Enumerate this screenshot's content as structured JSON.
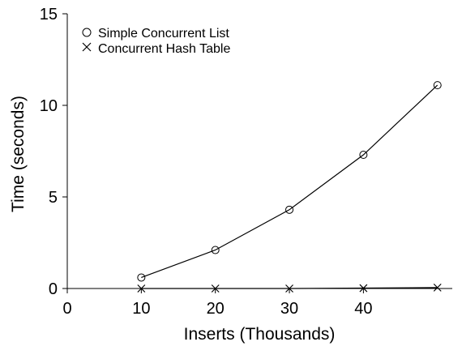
{
  "chart_data": {
    "type": "line",
    "x": [
      10,
      20,
      30,
      40,
      50
    ],
    "series": [
      {
        "name": "Simple Concurrent List",
        "marker": "circle",
        "values": [
          0.6,
          2.1,
          4.3,
          7.3,
          11.1
        ]
      },
      {
        "name": "Concurrent Hash Table",
        "marker": "x",
        "values": [
          0.0,
          0.0,
          0.0,
          0.02,
          0.05
        ]
      }
    ],
    "xlabel": "Inserts (Thousands)",
    "ylabel": "Time (seconds)",
    "xlim": [
      0,
      52
    ],
    "ylim": [
      0,
      15
    ],
    "xticks": [
      0,
      10,
      20,
      30,
      40
    ],
    "xtick_labels": [
      "0",
      "10",
      "20",
      "30",
      "40"
    ],
    "yticks": [
      0,
      5,
      10,
      15
    ],
    "ytick_labels": [
      "0",
      "5",
      "10",
      "15"
    ],
    "grid": false,
    "legend_position": "top-left",
    "line_color": "#000000"
  }
}
